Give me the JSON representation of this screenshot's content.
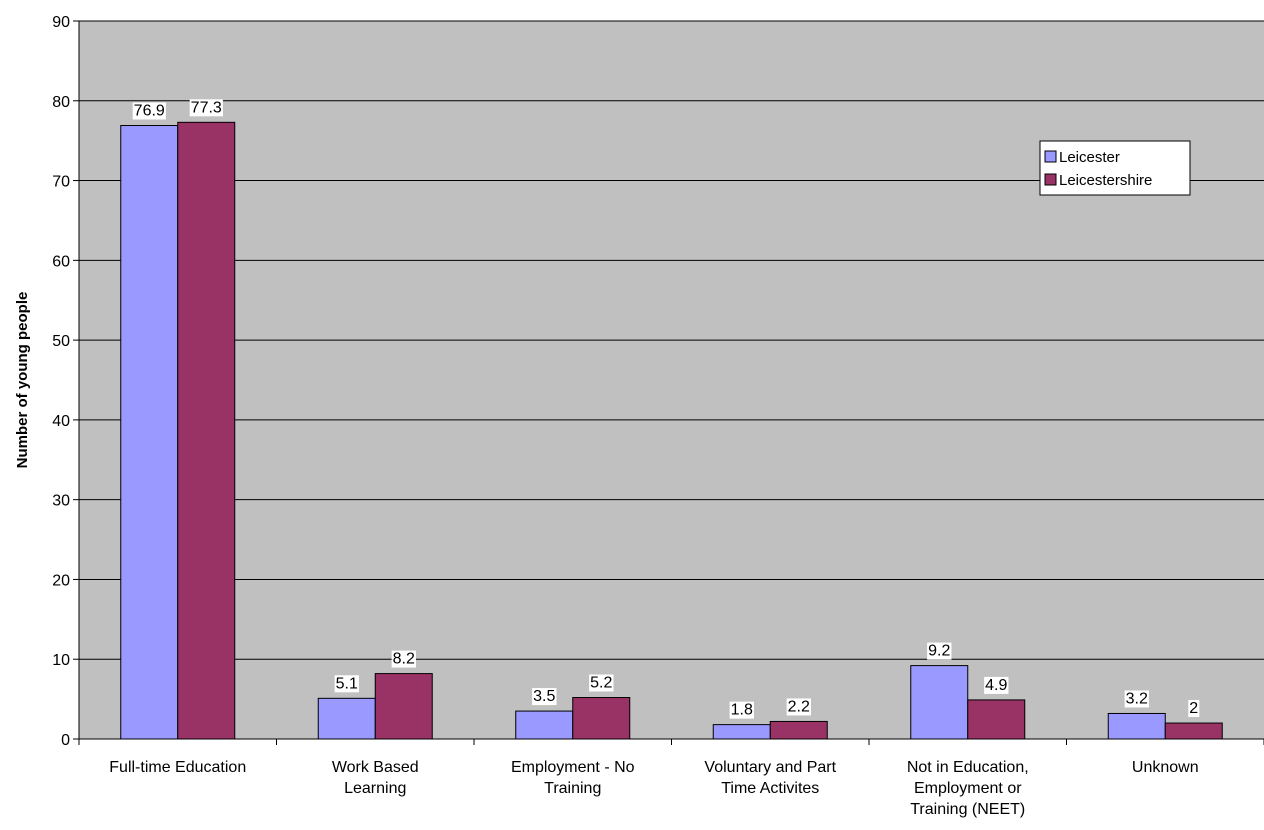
{
  "chart_data": {
    "type": "bar",
    "title": "",
    "xlabel": "",
    "ylabel": "Number of young people",
    "ylim": [
      0,
      90
    ],
    "yticks": [
      0,
      10,
      20,
      30,
      40,
      50,
      60,
      70,
      80,
      90
    ],
    "grid": true,
    "legend_position": "top-right",
    "categories": [
      [
        "Full-time Education"
      ],
      [
        "Work Based",
        "Learning"
      ],
      [
        "Employment - No",
        "Training"
      ],
      [
        "Voluntary and Part",
        "Time Activites"
      ],
      [
        "Not in Education,",
        "Employment or",
        "Training (NEET)"
      ],
      [
        "Unknown"
      ]
    ],
    "series": [
      {
        "name": "Leicester",
        "color": "#9999ff",
        "values": [
          76.9,
          5.1,
          3.5,
          1.8,
          9.2,
          3.2
        ]
      },
      {
        "name": "Leicestershire",
        "color": "#993366",
        "values": [
          77.3,
          8.2,
          5.2,
          2.2,
          4.9,
          2
        ]
      }
    ],
    "plot_background": "#c0c0c0"
  }
}
